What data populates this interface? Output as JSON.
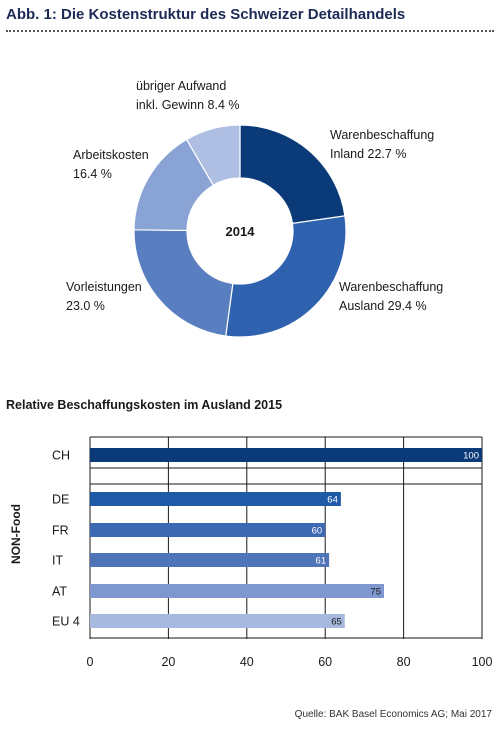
{
  "header": {
    "title": "Abb. 1: Die Kostenstruktur des Schweizer Detailhandels"
  },
  "chart_data": [
    {
      "type": "pie",
      "center_label": "2014",
      "slices": [
        {
          "label_line1": "Warenbeschaffung",
          "label_line2": "Inland 22.7 %",
          "value": 22.7,
          "color": "#0b3a78"
        },
        {
          "label_line1": "Warenbeschaffung",
          "label_line2": "Ausland 29.4 %",
          "value": 29.4,
          "color": "#2f62ae"
        },
        {
          "label_line1": "Vorleistungen",
          "label_line2": "23.0 %",
          "value": 23.0,
          "color": "#5a7fc1"
        },
        {
          "label_line1": "Arbeitskosten",
          "label_line2": "16.4 %",
          "value": 16.4,
          "color": "#8aa3d5"
        },
        {
          "label_line1": "übriger Aufwand",
          "label_line2": "inkl. Gewinn 8.4 %",
          "value": 8.4,
          "color": "#aebfe3"
        }
      ]
    },
    {
      "type": "bar",
      "orientation": "horizontal",
      "title": "Relative Beschaffungskosten im Ausland 2015",
      "group_label": "NON-Food",
      "categories": [
        "CH",
        "DE",
        "FR",
        "IT",
        "AT",
        "EU 4"
      ],
      "values": [
        100,
        64,
        60,
        61,
        75,
        65
      ],
      "colors": [
        "#0b3a78",
        "#1f5aa8",
        "#3d68b2",
        "#4f74b8",
        "#7f97cf",
        "#a7b9df"
      ],
      "xlim": [
        0,
        100
      ],
      "xticks": [
        0,
        20,
        40,
        60,
        80,
        100
      ]
    }
  ],
  "footer": {
    "source": "Quelle: BAK Basel Economics AG; Mai 2017"
  }
}
